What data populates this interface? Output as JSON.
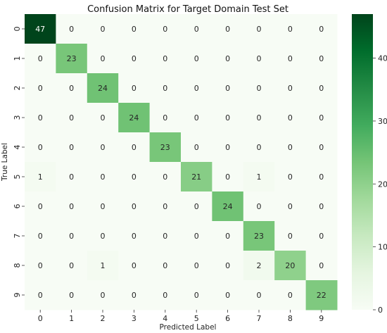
{
  "chart_data": {
    "type": "heatmap",
    "title": "Confusion Matrix for Target Domain Test Set",
    "xlabel": "Predicted Label",
    "ylabel": "True Label",
    "x_categories": [
      "0",
      "1",
      "2",
      "3",
      "4",
      "5",
      "6",
      "7",
      "8",
      "9"
    ],
    "y_categories": [
      "0",
      "1",
      "2",
      "3",
      "4",
      "5",
      "6",
      "7",
      "8",
      "9"
    ],
    "matrix": [
      [
        47,
        0,
        0,
        0,
        0,
        0,
        0,
        0,
        0,
        0
      ],
      [
        0,
        23,
        0,
        0,
        0,
        0,
        0,
        0,
        0,
        0
      ],
      [
        0,
        0,
        24,
        0,
        0,
        0,
        0,
        0,
        0,
        0
      ],
      [
        0,
        0,
        0,
        24,
        0,
        0,
        0,
        0,
        0,
        0
      ],
      [
        0,
        0,
        0,
        0,
        23,
        0,
        0,
        0,
        0,
        0
      ],
      [
        1,
        0,
        0,
        0,
        0,
        21,
        0,
        1,
        0,
        0
      ],
      [
        0,
        0,
        0,
        0,
        0,
        0,
        24,
        0,
        0,
        0
      ],
      [
        0,
        0,
        0,
        0,
        0,
        0,
        0,
        23,
        0,
        0
      ],
      [
        0,
        0,
        1,
        0,
        0,
        0,
        0,
        2,
        20,
        0
      ],
      [
        0,
        0,
        0,
        0,
        0,
        0,
        0,
        0,
        0,
        22
      ]
    ],
    "colorbar": {
      "range": [
        0,
        47
      ],
      "ticks": [
        0,
        10,
        20,
        30,
        40
      ],
      "colormap": "Greens",
      "color_low": "#f7fcf5",
      "color_high": "#00441b"
    }
  }
}
